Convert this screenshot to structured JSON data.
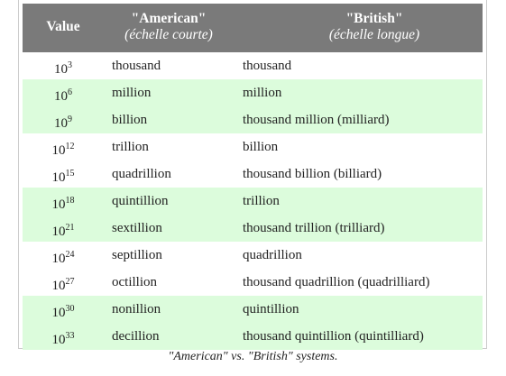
{
  "table": {
    "header": {
      "value": "Value",
      "american": "\"American\"",
      "american_sub": "(échelle courte)",
      "british": "\"British\"",
      "british_sub": "(échelle longue)"
    },
    "rows": [
      {
        "base": "10",
        "exp": "3",
        "american": "thousand",
        "british": "thousand"
      },
      {
        "base": "10",
        "exp": "6",
        "american": "million",
        "british": "million"
      },
      {
        "base": "10",
        "exp": "9",
        "american": "billion",
        "british": "thousand million (milliard)"
      },
      {
        "base": "10",
        "exp": "12",
        "american": "trillion",
        "british": "billion"
      },
      {
        "base": "10",
        "exp": "15",
        "american": "quadrillion",
        "british": "thousand billion (billiard)"
      },
      {
        "base": "10",
        "exp": "18",
        "american": "quintillion",
        "british": "trillion"
      },
      {
        "base": "10",
        "exp": "21",
        "american": "sextillion",
        "british": "thousand trillion (trilliard)"
      },
      {
        "base": "10",
        "exp": "24",
        "american": "septillion",
        "british": "quadrillion"
      },
      {
        "base": "10",
        "exp": "27",
        "american": "octillion",
        "british": "thousand quadrillion (quadrilliard)"
      },
      {
        "base": "10",
        "exp": "30",
        "american": "nonillion",
        "british": "quintillion"
      },
      {
        "base": "10",
        "exp": "33",
        "american": "decillion",
        "british": "thousand quintillion (quintilliard)"
      }
    ]
  },
  "caption": "\"American\" vs. \"British\" systems."
}
